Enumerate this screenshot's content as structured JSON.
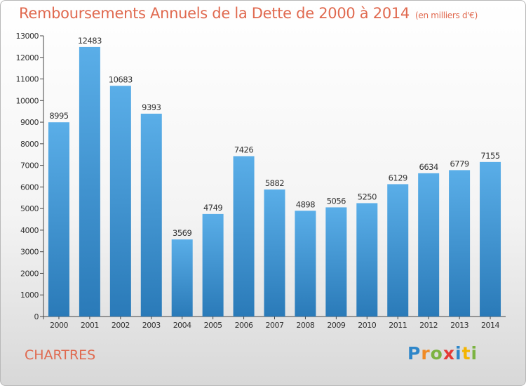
{
  "header": {
    "title": "Remboursements Annuels de la Dette de 2000 à 2014",
    "unit": "(en milliers d'€)"
  },
  "footer": {
    "city": "CHARTRES",
    "logo_letters": [
      "P",
      "r",
      "o",
      "x",
      "i",
      "t",
      "i"
    ]
  },
  "colors": {
    "bar_light": "#5aaee8",
    "bar_dark": "#2a7ab8",
    "title": "#e0694f"
  },
  "chart_data": {
    "type": "bar",
    "title": "Remboursements Annuels de la Dette de 2000 à 2014",
    "xlabel": "",
    "ylabel": "",
    "categories": [
      "2000",
      "2001",
      "2002",
      "2003",
      "2004",
      "2005",
      "2006",
      "2007",
      "2008",
      "2009",
      "2010",
      "2011",
      "2012",
      "2013",
      "2014"
    ],
    "values": [
      8995,
      12483,
      10683,
      9393,
      3569,
      4749,
      7426,
      5882,
      4898,
      5056,
      5250,
      6129,
      6634,
      6779,
      7155
    ],
    "ylim": [
      0,
      13000
    ],
    "yticks": [
      "0",
      "1000",
      "2000",
      "3000",
      "4000",
      "5000",
      "6000",
      "7000",
      "8000",
      "9000",
      "10000",
      "11000",
      "12000",
      "13000"
    ],
    "grid": false
  }
}
